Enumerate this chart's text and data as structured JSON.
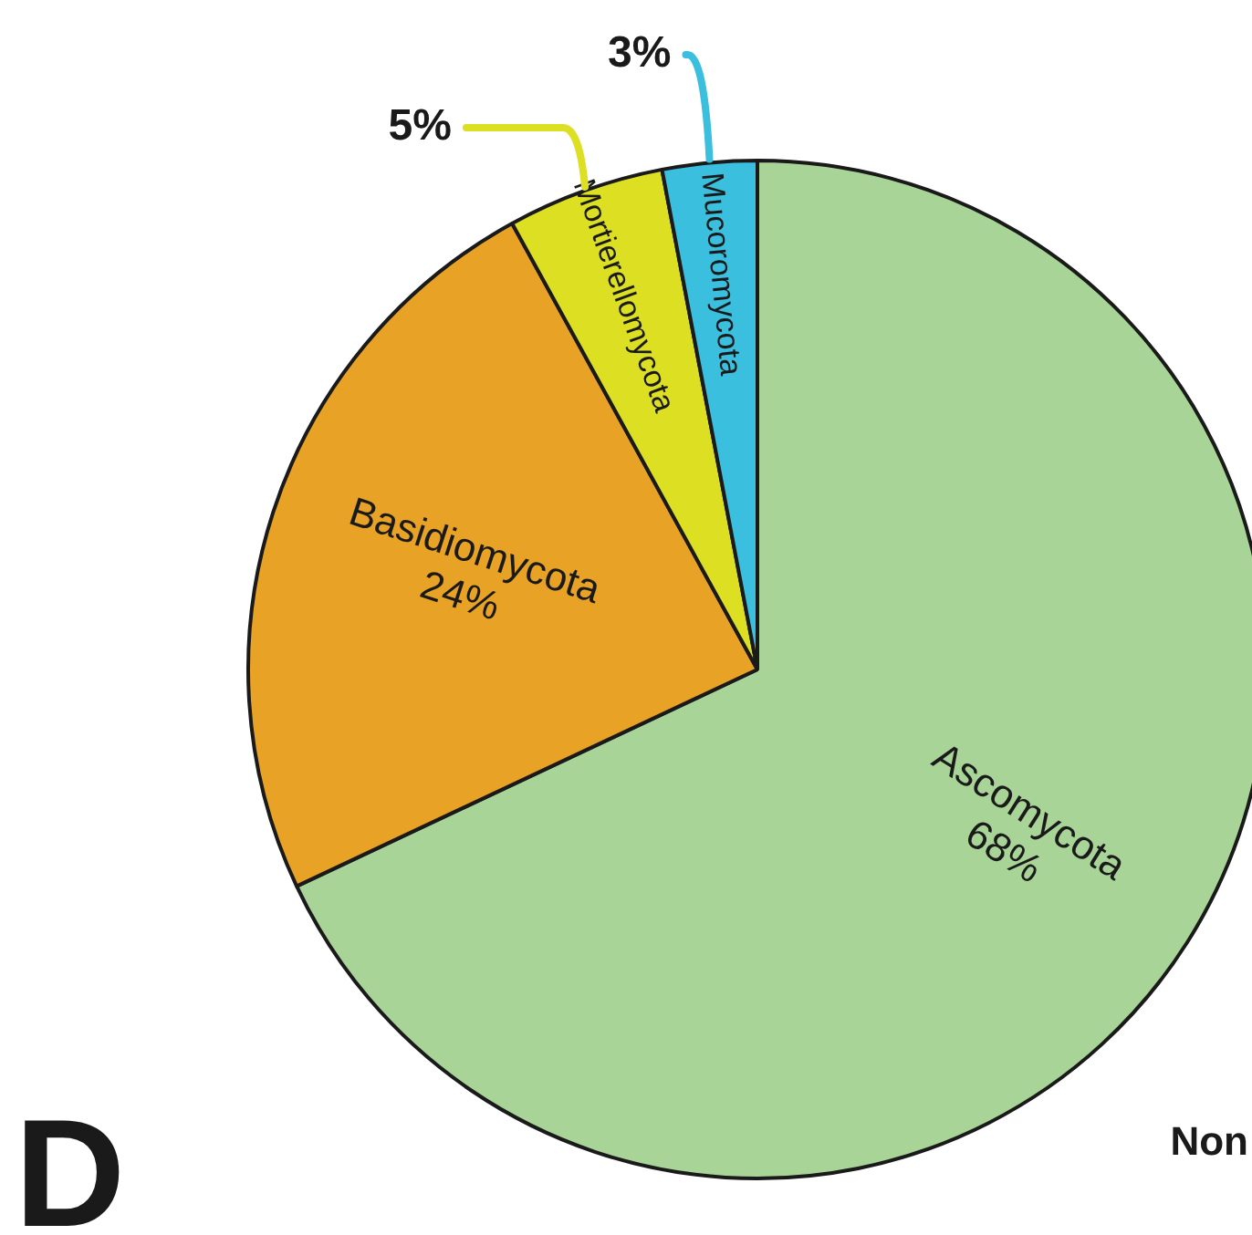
{
  "chart_data": {
    "type": "pie",
    "categories": [
      "Ascomycota",
      "Basidiomycota",
      "Mortierellomycota",
      "Mucoromycota"
    ],
    "values": [
      68,
      24,
      5,
      3
    ],
    "value_labels": [
      "68%",
      "24%",
      "5%",
      "3%"
    ],
    "colors": [
      "#a8d597",
      "#e8a226",
      "#dde022",
      "#3bbfdf"
    ],
    "legend": false,
    "annotations": [
      "D",
      "Non"
    ]
  }
}
